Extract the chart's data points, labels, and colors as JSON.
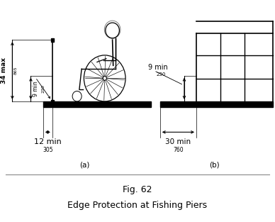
{
  "title_line1": "Fig. 62",
  "title_line2": "Edge Protection at Fishing Piers",
  "label_a": "(a)",
  "label_b": "(b)",
  "bg_color": "#ffffff",
  "line_color": "#000000",
  "deck_color": "#000000",
  "annotation_34max": "34 max",
  "annotation_865": "865",
  "annotation_9min_a": "9 min",
  "annotation_230_a": "230",
  "annotation_12min": "12 min",
  "annotation_305": "305",
  "annotation_9min_b": "9 min",
  "annotation_230_b": "230",
  "annotation_30min": "30 min",
  "annotation_760": "760"
}
